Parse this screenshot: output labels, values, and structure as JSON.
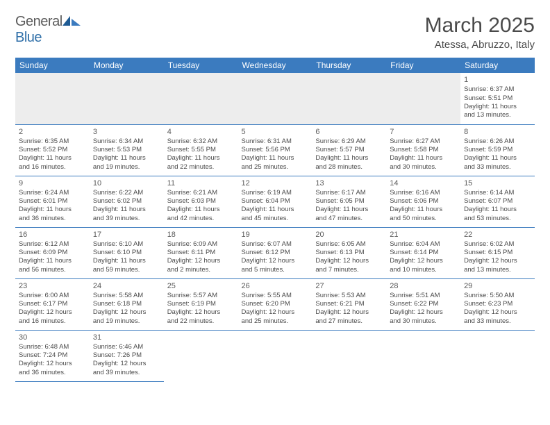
{
  "brand": {
    "part1": "General",
    "part2": "Blue"
  },
  "title": "March 2025",
  "location": "Atessa, Abruzzo, Italy",
  "colors": {
    "header_bg": "#3b7bbf",
    "header_text": "#ffffff",
    "cell_border": "#3b7bbf",
    "text": "#4a4a4a",
    "empty_bg": "#ededed"
  },
  "weekdays": [
    "Sunday",
    "Monday",
    "Tuesday",
    "Wednesday",
    "Thursday",
    "Friday",
    "Saturday"
  ],
  "weeks": [
    [
      null,
      null,
      null,
      null,
      null,
      null,
      {
        "n": "1",
        "sr": "6:37 AM",
        "ss": "5:51 PM",
        "dh": "11",
        "dm": "13"
      }
    ],
    [
      {
        "n": "2",
        "sr": "6:35 AM",
        "ss": "5:52 PM",
        "dh": "11",
        "dm": "16"
      },
      {
        "n": "3",
        "sr": "6:34 AM",
        "ss": "5:53 PM",
        "dh": "11",
        "dm": "19"
      },
      {
        "n": "4",
        "sr": "6:32 AM",
        "ss": "5:55 PM",
        "dh": "11",
        "dm": "22"
      },
      {
        "n": "5",
        "sr": "6:31 AM",
        "ss": "5:56 PM",
        "dh": "11",
        "dm": "25"
      },
      {
        "n": "6",
        "sr": "6:29 AM",
        "ss": "5:57 PM",
        "dh": "11",
        "dm": "28"
      },
      {
        "n": "7",
        "sr": "6:27 AM",
        "ss": "5:58 PM",
        "dh": "11",
        "dm": "30"
      },
      {
        "n": "8",
        "sr": "6:26 AM",
        "ss": "5:59 PM",
        "dh": "11",
        "dm": "33"
      }
    ],
    [
      {
        "n": "9",
        "sr": "6:24 AM",
        "ss": "6:01 PM",
        "dh": "11",
        "dm": "36"
      },
      {
        "n": "10",
        "sr": "6:22 AM",
        "ss": "6:02 PM",
        "dh": "11",
        "dm": "39"
      },
      {
        "n": "11",
        "sr": "6:21 AM",
        "ss": "6:03 PM",
        "dh": "11",
        "dm": "42"
      },
      {
        "n": "12",
        "sr": "6:19 AM",
        "ss": "6:04 PM",
        "dh": "11",
        "dm": "45"
      },
      {
        "n": "13",
        "sr": "6:17 AM",
        "ss": "6:05 PM",
        "dh": "11",
        "dm": "47"
      },
      {
        "n": "14",
        "sr": "6:16 AM",
        "ss": "6:06 PM",
        "dh": "11",
        "dm": "50"
      },
      {
        "n": "15",
        "sr": "6:14 AM",
        "ss": "6:07 PM",
        "dh": "11",
        "dm": "53"
      }
    ],
    [
      {
        "n": "16",
        "sr": "6:12 AM",
        "ss": "6:09 PM",
        "dh": "11",
        "dm": "56"
      },
      {
        "n": "17",
        "sr": "6:10 AM",
        "ss": "6:10 PM",
        "dh": "11",
        "dm": "59"
      },
      {
        "n": "18",
        "sr": "6:09 AM",
        "ss": "6:11 PM",
        "dh": "12",
        "dm": "2"
      },
      {
        "n": "19",
        "sr": "6:07 AM",
        "ss": "6:12 PM",
        "dh": "12",
        "dm": "5"
      },
      {
        "n": "20",
        "sr": "6:05 AM",
        "ss": "6:13 PM",
        "dh": "12",
        "dm": "7"
      },
      {
        "n": "21",
        "sr": "6:04 AM",
        "ss": "6:14 PM",
        "dh": "12",
        "dm": "10"
      },
      {
        "n": "22",
        "sr": "6:02 AM",
        "ss": "6:15 PM",
        "dh": "12",
        "dm": "13"
      }
    ],
    [
      {
        "n": "23",
        "sr": "6:00 AM",
        "ss": "6:17 PM",
        "dh": "12",
        "dm": "16"
      },
      {
        "n": "24",
        "sr": "5:58 AM",
        "ss": "6:18 PM",
        "dh": "12",
        "dm": "19"
      },
      {
        "n": "25",
        "sr": "5:57 AM",
        "ss": "6:19 PM",
        "dh": "12",
        "dm": "22"
      },
      {
        "n": "26",
        "sr": "5:55 AM",
        "ss": "6:20 PM",
        "dh": "12",
        "dm": "25"
      },
      {
        "n": "27",
        "sr": "5:53 AM",
        "ss": "6:21 PM",
        "dh": "12",
        "dm": "27"
      },
      {
        "n": "28",
        "sr": "5:51 AM",
        "ss": "6:22 PM",
        "dh": "12",
        "dm": "30"
      },
      {
        "n": "29",
        "sr": "5:50 AM",
        "ss": "6:23 PM",
        "dh": "12",
        "dm": "33"
      }
    ],
    [
      {
        "n": "30",
        "sr": "6:48 AM",
        "ss": "7:24 PM",
        "dh": "12",
        "dm": "36"
      },
      {
        "n": "31",
        "sr": "6:46 AM",
        "ss": "7:26 PM",
        "dh": "12",
        "dm": "39"
      },
      null,
      null,
      null,
      null,
      null
    ]
  ],
  "labels": {
    "sunrise": "Sunrise:",
    "sunset": "Sunset:",
    "daylight_pre": "Daylight:",
    "hours": "hours",
    "and": "and",
    "minutes": "minutes."
  }
}
